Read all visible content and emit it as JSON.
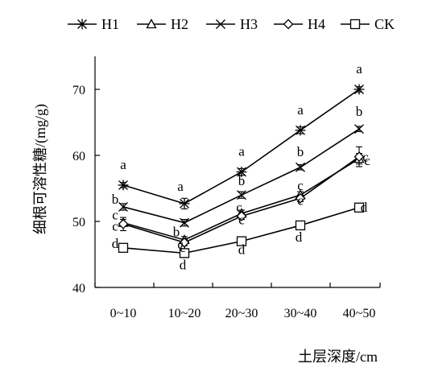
{
  "chart_data": {
    "type": "line",
    "xlabel": "土层深度/cm",
    "ylabel": "细根可溶性糖/(mg/g)",
    "categories": [
      "0~10",
      "10~20",
      "20~30",
      "30~40",
      "40~50"
    ],
    "ylim": [
      40,
      75
    ],
    "yticks": [
      40,
      50,
      60,
      70
    ],
    "grid": false,
    "legend_position": "top",
    "series": [
      {
        "name": "H1",
        "marker": "asterisk",
        "values": [
          55.5,
          52.7,
          57.5,
          63.8,
          70.0
        ],
        "errors": [
          0.4,
          0.8,
          0.5,
          0.5,
          0.4
        ],
        "letters": [
          "a",
          "a",
          "a",
          "a",
          "a"
        ]
      },
      {
        "name": "H2",
        "marker": "triangle",
        "values": [
          49.8,
          47.2,
          51.2,
          54.0,
          59.5
        ],
        "errors": [
          0.5,
          0.5,
          0.5,
          0.5,
          0.8
        ],
        "letters": [
          "c",
          "e",
          "c",
          "c",
          "c"
        ]
      },
      {
        "name": "H3",
        "marker": "x",
        "values": [
          52.2,
          49.8,
          54.0,
          58.2,
          64.0
        ],
        "errors": [
          0.5,
          0.5,
          0.5,
          0.4,
          0.4
        ],
        "letters": [
          "b",
          "b",
          "b",
          "b",
          "b"
        ]
      },
      {
        "name": "H4",
        "marker": "diamond",
        "values": [
          49.6,
          46.8,
          50.8,
          53.5,
          59.8
        ],
        "errors": [
          1.0,
          0.5,
          0.5,
          0.5,
          1.5
        ],
        "letters": [
          "c",
          "c",
          "c",
          "c",
          "c"
        ]
      },
      {
        "name": "CK",
        "marker": "square",
        "values": [
          46.0,
          45.2,
          47.0,
          49.4,
          52.1
        ],
        "errors": [
          0.4,
          0.5,
          0.4,
          0.4,
          0.5
        ],
        "letters": [
          "d",
          "d",
          "d",
          "d",
          "d"
        ]
      }
    ]
  }
}
